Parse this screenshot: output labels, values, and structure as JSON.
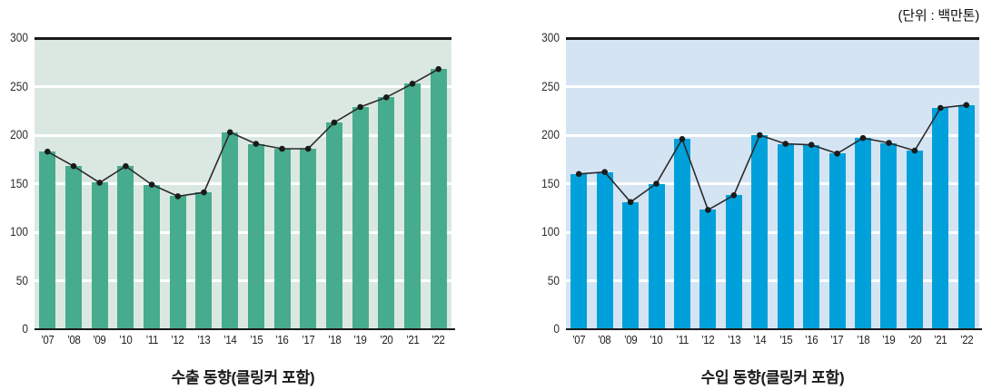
{
  "unit_label": "(단위 : 백만톤)",
  "colors": {
    "top_border": "#1a1a1a",
    "axis": "#1a1a1a",
    "gridline": "#ffffff",
    "trend_line": "#2b2b2b",
    "marker": "#1a1a1a",
    "export_bar": "#47ac8d",
    "export_bg": "#dae8e1",
    "import_bar": "#00a1db",
    "import_bg": "#d5e4f3"
  },
  "chart_data": [
    {
      "type": "bar",
      "overlay": "line",
      "title": "수출 동향(클링커 포함)",
      "categories": [
        "’07",
        "’08",
        "’09",
        "’10",
        "’11",
        "’12",
        "’13",
        "’14",
        "’15",
        "’16",
        "’17",
        "’18",
        "’19",
        "’20",
        "’21",
        "’22"
      ],
      "values": [
        183,
        168,
        151,
        168,
        149,
        137,
        141,
        203,
        191,
        186,
        186,
        213,
        229,
        239,
        253,
        268
      ],
      "xlabel": "",
      "ylabel": "",
      "ylim": [
        0,
        300
      ],
      "yticks": [
        0,
        50,
        100,
        150,
        200,
        250,
        300
      ],
      "grid": true,
      "legend": false,
      "bar_color": "#47ac8d",
      "bg_color": "#dae8e1"
    },
    {
      "type": "bar",
      "overlay": "line",
      "title": "수입 동향(클링커 포함)",
      "categories": [
        "’07",
        "’08",
        "’09",
        "’10",
        "’11",
        "’12",
        "’13",
        "’14",
        "’15",
        "’16",
        "’17",
        "’18",
        "’19",
        "’20",
        "’21",
        "’22"
      ],
      "values": [
        160,
        162,
        131,
        150,
        196,
        123,
        138,
        200,
        191,
        190,
        181,
        197,
        192,
        184,
        228,
        231
      ],
      "xlabel": "",
      "ylabel": "",
      "ylim": [
        0,
        300
      ],
      "yticks": [
        0,
        50,
        100,
        150,
        200,
        250,
        300
      ],
      "grid": true,
      "legend": false,
      "bar_color": "#00a1db",
      "bg_color": "#d5e4f3"
    }
  ]
}
